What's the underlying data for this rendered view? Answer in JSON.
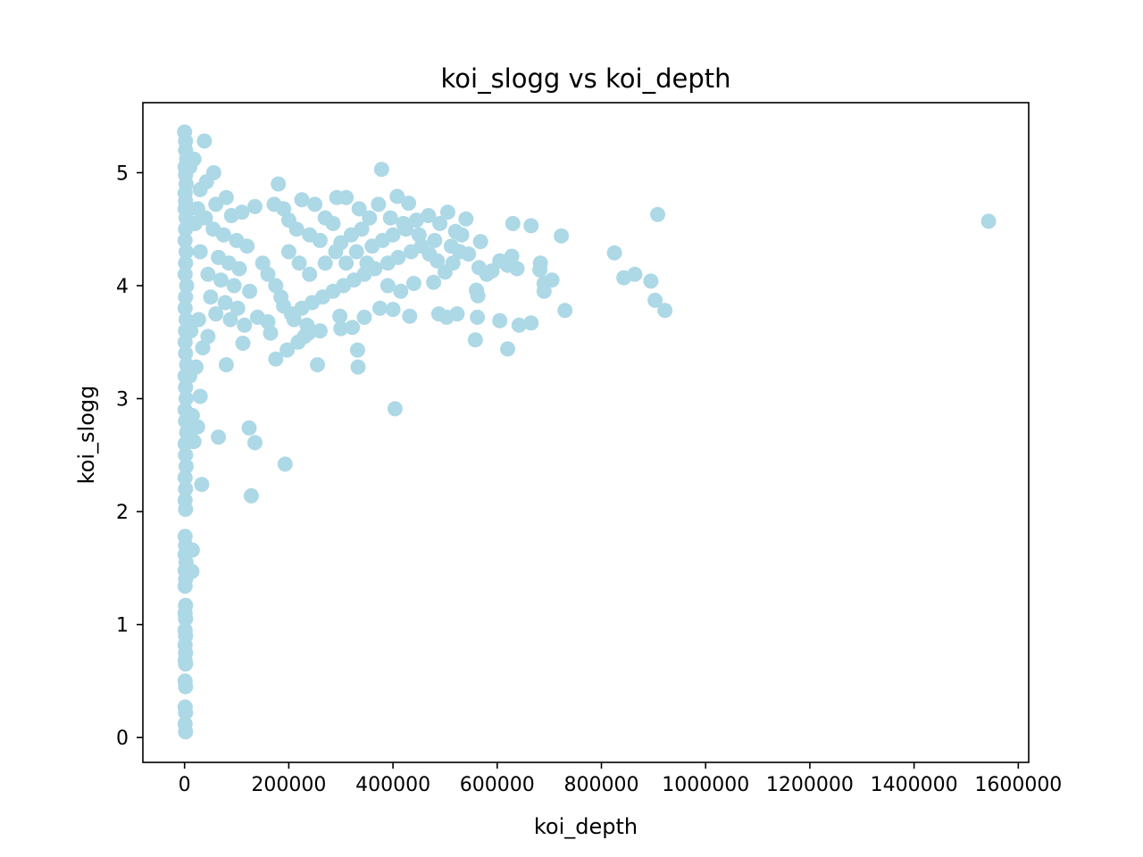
{
  "chart_data": {
    "type": "scatter",
    "title": "koi_slogg vs koi_depth",
    "xlabel": "koi_depth",
    "ylabel": "koi_slogg",
    "xlim": [
      -80000,
      1620000
    ],
    "ylim": [
      -0.22,
      5.62
    ],
    "xticks": [
      0,
      200000,
      400000,
      600000,
      800000,
      1000000,
      1200000,
      1400000,
      1600000
    ],
    "xtick_labels": [
      "0",
      "200000",
      "400000",
      "600000",
      "800000",
      "1000000",
      "1200000",
      "1400000",
      "1600000"
    ],
    "yticks": [
      0,
      1,
      2,
      3,
      4,
      5
    ],
    "ytick_labels": [
      "0",
      "1",
      "2",
      "3",
      "4",
      "5"
    ],
    "grid": false,
    "marker_color": "#add8e6",
    "series": [
      {
        "points": [
          [
            0,
            5.36
          ],
          [
            2000,
            5.28
          ],
          [
            2000,
            5.2
          ],
          [
            4000,
            5.12
          ],
          [
            1000,
            5.05
          ],
          [
            2000,
            4.98
          ],
          [
            3000,
            4.9
          ],
          [
            1000,
            4.82
          ],
          [
            2000,
            4.75
          ],
          [
            1000,
            4.68
          ],
          [
            3000,
            4.6
          ],
          [
            2000,
            4.5
          ],
          [
            1000,
            4.4
          ],
          [
            3000,
            4.3
          ],
          [
            2000,
            4.2
          ],
          [
            1000,
            4.1
          ],
          [
            4000,
            4.0
          ],
          [
            2000,
            3.9
          ],
          [
            1000,
            3.8
          ],
          [
            3000,
            3.7
          ],
          [
            2000,
            3.6
          ],
          [
            1000,
            3.5
          ],
          [
            2000,
            3.4
          ],
          [
            4000,
            3.3
          ],
          [
            1000,
            3.2
          ],
          [
            2000,
            3.1
          ],
          [
            3000,
            3.0
          ],
          [
            1000,
            2.9
          ],
          [
            2000,
            2.8
          ],
          [
            4000,
            2.7
          ],
          [
            1000,
            2.6
          ],
          [
            2000,
            2.5
          ],
          [
            3000,
            2.4
          ],
          [
            1000,
            2.3
          ],
          [
            2000,
            2.2
          ],
          [
            1000,
            2.1
          ],
          [
            2000,
            2.02
          ],
          [
            1000,
            1.78
          ],
          [
            2000,
            1.7
          ],
          [
            1000,
            1.62
          ],
          [
            3000,
            1.55
          ],
          [
            1000,
            1.48
          ],
          [
            2000,
            1.4
          ],
          [
            1000,
            1.34
          ],
          [
            2000,
            1.17
          ],
          [
            1000,
            1.1
          ],
          [
            2000,
            1.05
          ],
          [
            1000,
            0.95
          ],
          [
            2000,
            0.9
          ],
          [
            1000,
            0.82
          ],
          [
            2000,
            0.75
          ],
          [
            1000,
            0.68
          ],
          [
            2000,
            0.65
          ],
          [
            1000,
            0.5
          ],
          [
            2000,
            0.45
          ],
          [
            1000,
            0.27
          ],
          [
            2000,
            0.22
          ],
          [
            1000,
            0.12
          ],
          [
            2000,
            0.05
          ],
          [
            15000,
            1.66
          ],
          [
            14000,
            1.47
          ],
          [
            33000,
            2.24
          ],
          [
            25000,
            2.75
          ],
          [
            30000,
            3.02
          ],
          [
            18000,
            2.62
          ],
          [
            15000,
            2.85
          ],
          [
            10000,
            3.2
          ],
          [
            22000,
            3.28
          ],
          [
            35000,
            3.45
          ],
          [
            45000,
            3.55
          ],
          [
            12000,
            3.6
          ],
          [
            27000,
            3.7
          ],
          [
            38000,
            5.28
          ],
          [
            18000,
            5.12
          ],
          [
            10000,
            5.05
          ],
          [
            56000,
            5.0
          ],
          [
            42000,
            4.92
          ],
          [
            30000,
            4.85
          ],
          [
            80000,
            4.78
          ],
          [
            60000,
            4.72
          ],
          [
            25000,
            4.68
          ],
          [
            40000,
            4.6
          ],
          [
            90000,
            4.62
          ],
          [
            110000,
            4.65
          ],
          [
            135000,
            4.7
          ],
          [
            20000,
            4.55
          ],
          [
            55000,
            4.5
          ],
          [
            75000,
            4.45
          ],
          [
            100000,
            4.4
          ],
          [
            120000,
            4.35
          ],
          [
            30000,
            4.3
          ],
          [
            65000,
            4.25
          ],
          [
            85000,
            4.2
          ],
          [
            105000,
            4.15
          ],
          [
            45000,
            4.1
          ],
          [
            70000,
            4.05
          ],
          [
            95000,
            4.0
          ],
          [
            125000,
            3.95
          ],
          [
            50000,
            3.9
          ],
          [
            78000,
            3.85
          ],
          [
            102000,
            3.8
          ],
          [
            60000,
            3.75
          ],
          [
            88000,
            3.7
          ],
          [
            115000,
            3.65
          ],
          [
            140000,
            3.72
          ],
          [
            160000,
            3.68
          ],
          [
            165000,
            3.58
          ],
          [
            112000,
            3.49
          ],
          [
            80000,
            3.3
          ],
          [
            65000,
            2.66
          ],
          [
            124000,
            2.74
          ],
          [
            135000,
            2.61
          ],
          [
            128000,
            2.14
          ],
          [
            193000,
            2.42
          ],
          [
            175000,
            3.35
          ],
          [
            197000,
            3.43
          ],
          [
            218000,
            3.5
          ],
          [
            230000,
            3.55
          ],
          [
            238000,
            3.58
          ],
          [
            255000,
            3.3
          ],
          [
            180000,
            4.9
          ],
          [
            172000,
            4.72
          ],
          [
            190000,
            4.68
          ],
          [
            225000,
            4.76
          ],
          [
            250000,
            4.72
          ],
          [
            292000,
            4.78
          ],
          [
            310000,
            4.78
          ],
          [
            270000,
            4.6
          ],
          [
            285000,
            4.55
          ],
          [
            200000,
            4.58
          ],
          [
            215000,
            4.5
          ],
          [
            240000,
            4.45
          ],
          [
            260000,
            4.4
          ],
          [
            300000,
            4.38
          ],
          [
            320000,
            4.45
          ],
          [
            340000,
            4.5
          ],
          [
            335000,
            4.68
          ],
          [
            355000,
            4.6
          ],
          [
            372000,
            4.72
          ],
          [
            378000,
            5.03
          ],
          [
            408000,
            4.79
          ],
          [
            430000,
            4.73
          ],
          [
            395000,
            4.6
          ],
          [
            420000,
            4.55
          ],
          [
            445000,
            4.58
          ],
          [
            468000,
            4.62
          ],
          [
            490000,
            4.55
          ],
          [
            505000,
            4.65
          ],
          [
            540000,
            4.59
          ],
          [
            520000,
            4.48
          ],
          [
            480000,
            4.4
          ],
          [
            455000,
            4.35
          ],
          [
            435000,
            4.3
          ],
          [
            410000,
            4.25
          ],
          [
            390000,
            4.2
          ],
          [
            365000,
            4.15
          ],
          [
            345000,
            4.1
          ],
          [
            325000,
            4.05
          ],
          [
            305000,
            4.0
          ],
          [
            285000,
            3.95
          ],
          [
            265000,
            3.9
          ],
          [
            245000,
            3.85
          ],
          [
            225000,
            3.8
          ],
          [
            205000,
            3.75
          ],
          [
            190000,
            3.82
          ],
          [
            210000,
            3.7
          ],
          [
            235000,
            3.65
          ],
          [
            260000,
            3.6
          ],
          [
            150000,
            4.2
          ],
          [
            160000,
            4.1
          ],
          [
            175000,
            4.0
          ],
          [
            185000,
            3.9
          ],
          [
            200000,
            4.3
          ],
          [
            220000,
            4.2
          ],
          [
            240000,
            4.1
          ],
          [
            270000,
            4.2
          ],
          [
            290000,
            4.3
          ],
          [
            310000,
            4.2
          ],
          [
            330000,
            4.3
          ],
          [
            350000,
            4.2
          ],
          [
            360000,
            4.35
          ],
          [
            380000,
            4.4
          ],
          [
            400000,
            4.45
          ],
          [
            425000,
            4.5
          ],
          [
            450000,
            4.45
          ],
          [
            470000,
            4.28
          ],
          [
            485000,
            4.22
          ],
          [
            500000,
            4.12
          ],
          [
            478000,
            4.03
          ],
          [
            375000,
            3.8
          ],
          [
            400000,
            3.79
          ],
          [
            432000,
            3.73
          ],
          [
            298000,
            3.73
          ],
          [
            300000,
            3.62
          ],
          [
            322000,
            3.63
          ],
          [
            345000,
            3.72
          ],
          [
            332000,
            3.43
          ],
          [
            333000,
            3.28
          ],
          [
            404000,
            2.91
          ],
          [
            415000,
            3.95
          ],
          [
            440000,
            4.02
          ],
          [
            390000,
            4.0
          ],
          [
            488000,
            3.75
          ],
          [
            503000,
            3.72
          ],
          [
            523000,
            3.75
          ],
          [
            558000,
            3.52
          ],
          [
            560000,
            3.96
          ],
          [
            563000,
            3.91
          ],
          [
            562000,
            3.72
          ],
          [
            565000,
            4.16
          ],
          [
            568000,
            4.39
          ],
          [
            580000,
            4.1
          ],
          [
            590000,
            4.13
          ],
          [
            605000,
            4.22
          ],
          [
            620000,
            4.18
          ],
          [
            628000,
            4.26
          ],
          [
            605000,
            3.69
          ],
          [
            620000,
            3.44
          ],
          [
            630000,
            4.55
          ],
          [
            638000,
            4.15
          ],
          [
            642000,
            3.65
          ],
          [
            665000,
            4.53
          ],
          [
            665000,
            3.67
          ],
          [
            683000,
            4.2
          ],
          [
            682000,
            4.14
          ],
          [
            690000,
            3.95
          ],
          [
            690000,
            4.02
          ],
          [
            705000,
            4.05
          ],
          [
            723000,
            4.44
          ],
          [
            730000,
            3.78
          ],
          [
            825000,
            4.29
          ],
          [
            843000,
            4.07
          ],
          [
            864000,
            4.1
          ],
          [
            895000,
            4.04
          ],
          [
            903000,
            3.87
          ],
          [
            908000,
            4.63
          ],
          [
            922000,
            3.78
          ],
          [
            1543000,
            4.57
          ],
          [
            528000,
            4.3
          ],
          [
            545000,
            4.28
          ],
          [
            512000,
            4.35
          ],
          [
            532000,
            4.45
          ],
          [
            515000,
            4.2
          ]
        ]
      }
    ]
  }
}
